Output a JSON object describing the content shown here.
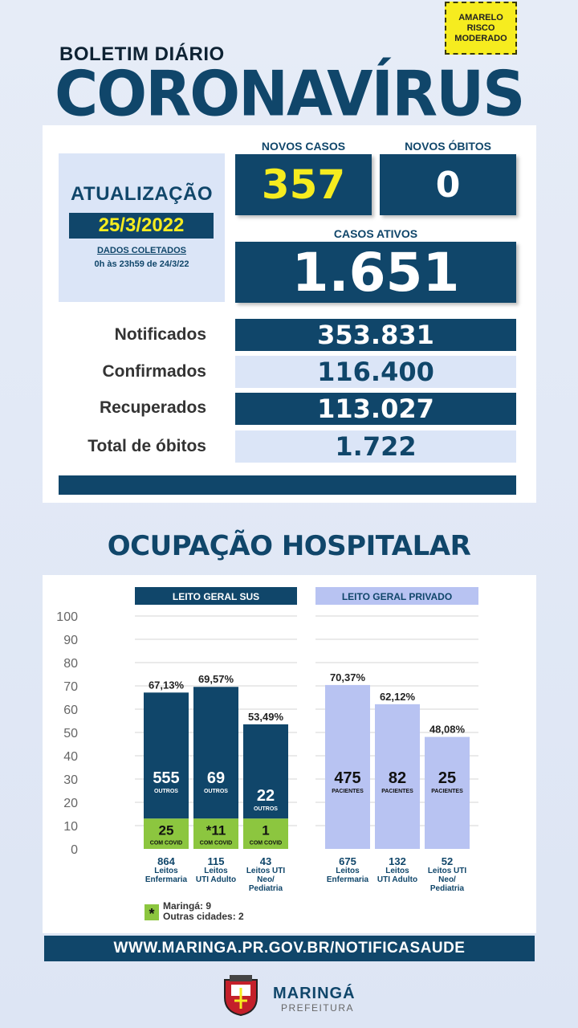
{
  "risk": {
    "line1": "AMARELO",
    "line2": "RISCO",
    "line3": "MODERADO",
    "color": "#f6ec1f"
  },
  "header": {
    "subtitle": "BOLETIM DIÁRIO",
    "title": "CORONAVÍRUS"
  },
  "update": {
    "title": "ATUALIZAÇÃO",
    "date": "25/3/2022",
    "dados_label": "DADOS COLETADOS",
    "periodo": "0h às 23h59 de 24/3/22"
  },
  "new_cases": {
    "label": "NOVOS CASOS",
    "value": "357"
  },
  "new_deaths": {
    "label": "NOVOS ÓBITOS",
    "value": "0"
  },
  "active_cases": {
    "label": "CASOS ATIVOS",
    "value": "1.651"
  },
  "rows": [
    {
      "label": "Notificados",
      "value": "353.831"
    },
    {
      "label": "Confirmados",
      "value": "116.400"
    },
    {
      "label": "Recuperados",
      "value": "113.027"
    },
    {
      "label": "Total de óbitos",
      "value": "1.722"
    }
  ],
  "section_title": "OCUPAÇÃO HOSPITALAR",
  "colors": {
    "primary": "#10466a",
    "sus_bar": "#10466a",
    "covid_bar": "#8cc63f",
    "private_bar": "#b8c3f2",
    "light": "#dbe5f7"
  },
  "chart_data": {
    "type": "bar",
    "ylim": [
      0,
      100
    ],
    "yticks": [
      "0",
      "10",
      "20",
      "30",
      "40",
      "50",
      "60",
      "70",
      "80",
      "90",
      "100"
    ],
    "groups": [
      {
        "title": "LEITO GERAL SUS",
        "bars": [
          {
            "pct": 67.13,
            "pct_label": "67,13%",
            "covid": 25,
            "covid_label": "25",
            "covid_sub": "COM COVID",
            "others": 555,
            "others_label": "555",
            "others_sub": "OUTROS",
            "total": "864",
            "cat1": "Leitos",
            "cat2": "Enfermaria",
            "cat3": ""
          },
          {
            "pct": 69.57,
            "pct_label": "69,57%",
            "covid": 11,
            "covid_label": "*11",
            "covid_sub": "COM COVID",
            "others": 69,
            "others_label": "69",
            "others_sub": "OUTROS",
            "total": "115",
            "cat1": "Leitos",
            "cat2": "UTI Adulto",
            "cat3": ""
          },
          {
            "pct": 53.49,
            "pct_label": "53,49%",
            "covid": 1,
            "covid_label": "1",
            "covid_sub": "COM COVID",
            "others": 22,
            "others_label": "22",
            "others_sub": "OUTROS",
            "total": "43",
            "cat1": "Leitos UTI",
            "cat2": "Neo/",
            "cat3": "Pediatria"
          }
        ]
      },
      {
        "title": "LEITO GERAL PRIVADO",
        "bars": [
          {
            "pct": 70.37,
            "pct_label": "70,37%",
            "patients": 475,
            "patients_label": "475",
            "patients_sub": "PACIENTES",
            "total": "675",
            "cat1": "Leitos",
            "cat2": "Enfermaria",
            "cat3": ""
          },
          {
            "pct": 62.12,
            "pct_label": "62,12%",
            "patients": 82,
            "patients_label": "82",
            "patients_sub": "PACIENTES",
            "total": "132",
            "cat1": "Leitos",
            "cat2": "UTI Adulto",
            "cat3": ""
          },
          {
            "pct": 48.08,
            "pct_label": "48,08%",
            "patients": 25,
            "patients_label": "25",
            "patients_sub": "PACIENTES",
            "total": "52",
            "cat1": "Leitos UTI",
            "cat2": "Neo/",
            "cat3": "Pediatria"
          }
        ]
      }
    ],
    "footnote": {
      "symbol": "*",
      "line1": "Maringá: 9",
      "line2": "Outras cidades: 2"
    }
  },
  "footer": {
    "url": "WWW.MARINGA.PR.GOV.BR/NOTIFICASAUDE",
    "logo_name": "MARINGÁ",
    "logo_sub": "PREFEITURA"
  }
}
